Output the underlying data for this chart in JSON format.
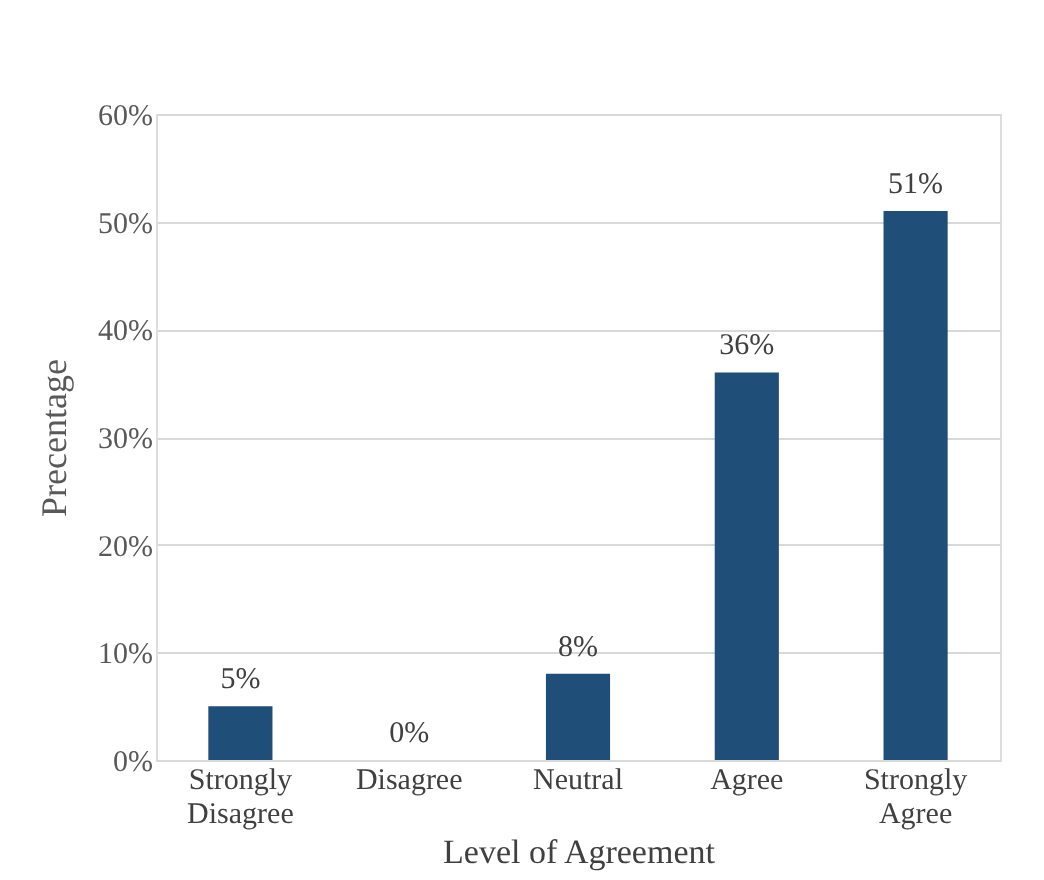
{
  "chart_data": {
    "type": "bar",
    "xlabel": "Level of Agreement",
    "ylabel": "Precentage",
    "categories": [
      "Strongly Disagree",
      "Disagree",
      "Neutral",
      "Agree",
      "Strongly Agree"
    ],
    "values": [
      5,
      0,
      8,
      36,
      51
    ],
    "value_labels": [
      "5%",
      "0%",
      "8%",
      "36%",
      "51%"
    ],
    "color": "#1f4e79",
    "ylim": [
      0,
      60
    ],
    "yticks": [
      {
        "value": 0,
        "label": "0%"
      },
      {
        "value": 10,
        "label": "10%"
      },
      {
        "value": 20,
        "label": "20%"
      },
      {
        "value": 30,
        "label": "30%"
      },
      {
        "value": 40,
        "label": "40%"
      },
      {
        "value": 50,
        "label": "50%"
      },
      {
        "value": 60,
        "label": "60%"
      }
    ],
    "grid": "y"
  }
}
